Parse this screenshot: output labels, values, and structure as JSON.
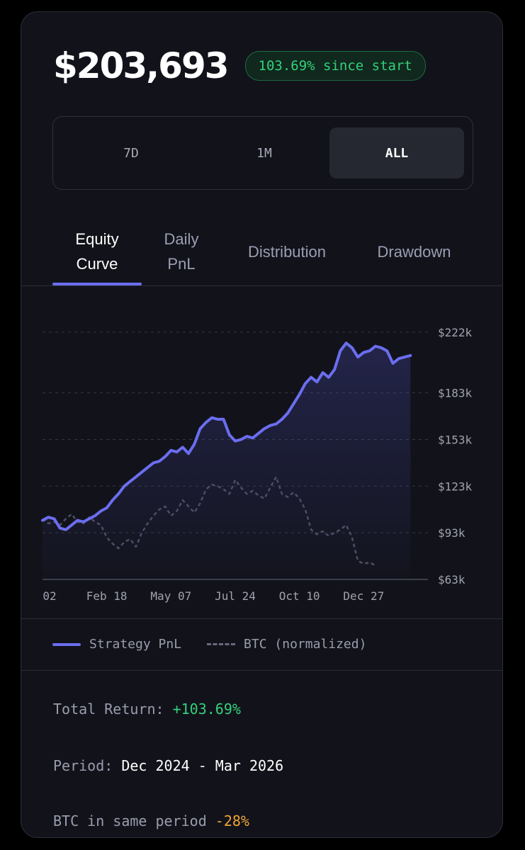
{
  "header": {
    "balance": "$203,693",
    "badge": "103.69% since start"
  },
  "range_selector": {
    "options": [
      "7D",
      "1M",
      "ALL"
    ],
    "selected": "ALL"
  },
  "tabs": [
    {
      "label": "Equity Curve",
      "lines": [
        "Equity",
        "Curve"
      ],
      "active": true
    },
    {
      "label": "Daily PnL",
      "lines": [
        "Daily",
        "PnL"
      ],
      "active": false
    },
    {
      "label": "Distribution",
      "lines": [
        "Distribution"
      ],
      "active": false
    },
    {
      "label": "Drawdown",
      "lines": [
        "Drawdown"
      ],
      "active": false
    }
  ],
  "legend": {
    "strategy": "Strategy PnL",
    "btc": "BTC (normalized)"
  },
  "stats": {
    "total_return_label": "Total Return:",
    "total_return_value": "+103.69%",
    "period_label": "Period:",
    "period_value": "Dec 2024 - Mar 2026",
    "btc_label": "BTC in same period",
    "btc_value": "-28%"
  },
  "colors": {
    "strategy": "#6b6ef0",
    "btc": "#4e4c66",
    "positive": "#34d17c",
    "negative": "#f0a335",
    "grid": "#343645"
  },
  "chart_data": {
    "type": "line",
    "x_tick_labels": [
      "02",
      "Feb 18",
      "May 07",
      "Jul 24",
      "Oct 10",
      "Dec 27"
    ],
    "x_tick_positions": [
      0,
      11,
      22,
      33,
      44,
      55
    ],
    "x_range": [
      0,
      66
    ],
    "y_tick_labels": [
      "$222k",
      "$183k",
      "$153k",
      "$123k",
      "$93k",
      "$63k"
    ],
    "y_tick_values": [
      222,
      183,
      153,
      123,
      93,
      63
    ],
    "y_range": [
      63,
      222
    ],
    "grid": true,
    "y_axis_position": "right",
    "series": [
      {
        "name": "Strategy PnL",
        "style": "solid",
        "values": [
          101,
          103,
          102,
          96,
          95,
          98,
          101,
          100,
          102,
          104,
          107,
          109,
          114,
          118,
          123,
          126,
          129,
          132,
          135,
          138,
          139,
          142,
          146,
          145,
          148,
          144,
          150,
          160,
          164,
          167,
          166,
          166,
          156,
          152,
          153,
          155,
          154,
          157,
          160,
          162,
          163,
          166,
          170,
          176,
          182,
          189,
          193,
          190,
          196,
          193,
          198,
          210,
          215,
          212,
          206,
          209,
          210,
          213,
          212,
          210,
          202,
          205,
          206,
          207
        ]
      },
      {
        "name": "BTC (normalized)",
        "style": "dashed",
        "values": [
          102,
          99,
          100,
          98,
          102,
          105,
          100,
          99,
          103,
          100,
          98,
          90,
          86,
          83,
          87,
          89,
          84,
          93,
          99,
          104,
          108,
          110,
          104,
          107,
          114,
          110,
          106,
          112,
          121,
          124,
          123,
          121,
          118,
          127,
          122,
          118,
          120,
          117,
          115,
          122,
          129,
          118,
          116,
          119,
          115,
          108,
          95,
          92,
          94,
          91,
          93,
          95,
          98,
          90,
          75,
          73,
          74,
          72
        ]
      }
    ]
  }
}
